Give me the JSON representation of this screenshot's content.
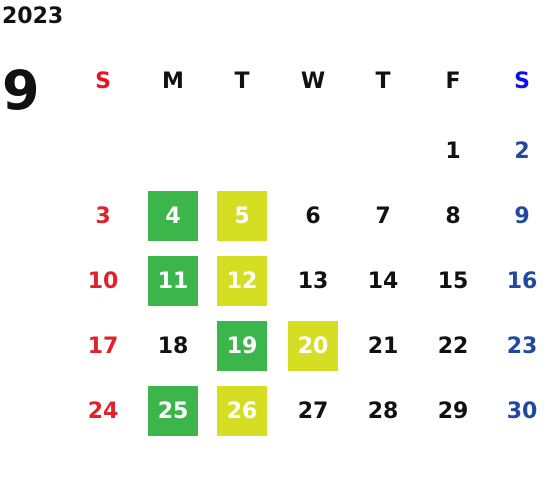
{
  "calendar": {
    "year": "2023",
    "month": "9",
    "weekdays": [
      {
        "text": "S",
        "color": "#e8141e"
      },
      {
        "text": "M",
        "color": "#111111"
      },
      {
        "text": "T",
        "color": "#111111"
      },
      {
        "text": "W",
        "color": "#111111"
      },
      {
        "text": "T",
        "color": "#111111"
      },
      {
        "text": "F",
        "color": "#111111"
      },
      {
        "text": "S",
        "color": "#1010e0"
      }
    ],
    "day_colors": [
      "#e0232a",
      "#111111",
      "#111111",
      "#111111",
      "#111111",
      "#111111",
      "#1f4aa0"
    ],
    "highlight_text_color": "#ffffff",
    "weeks": [
      [
        null,
        null,
        null,
        null,
        null,
        "1",
        "2"
      ],
      [
        "3",
        {
          "text": "4",
          "fill": "#3cb54a"
        },
        {
          "text": "5",
          "fill": "#d6de23"
        },
        "6",
        "7",
        "8",
        "9"
      ],
      [
        "10",
        {
          "text": "11",
          "fill": "#3cb54a"
        },
        {
          "text": "12",
          "fill": "#d6de23"
        },
        "13",
        "14",
        "15",
        "16"
      ],
      [
        "17",
        "18",
        {
          "text": "19",
          "fill": "#3cb54a"
        },
        {
          "text": "20",
          "fill": "#d6de23"
        },
        "21",
        "22",
        "23"
      ],
      [
        "24",
        {
          "text": "25",
          "fill": "#3cb54a"
        },
        {
          "text": "26",
          "fill": "#d6de23"
        },
        "27",
        "28",
        "29",
        "30"
      ]
    ]
  }
}
